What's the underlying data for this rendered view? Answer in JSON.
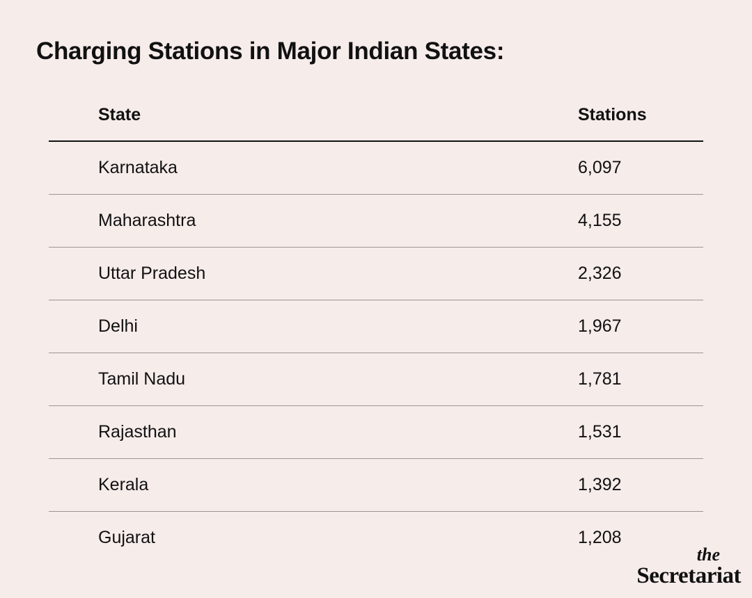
{
  "chart_data": {
    "type": "table",
    "title": "Charging Stations in Major Indian States:",
    "columns": [
      "State",
      "Stations"
    ],
    "rows": [
      {
        "state": "Karnataka",
        "stations": "6,097"
      },
      {
        "state": "Maharashtra",
        "stations": "4,155"
      },
      {
        "state": "Uttar Pradesh",
        "stations": "2,326"
      },
      {
        "state": "Delhi",
        "stations": "1,967"
      },
      {
        "state": "Tamil Nadu",
        "stations": "1,781"
      },
      {
        "state": "Rajasthan",
        "stations": "1,531"
      },
      {
        "state": "Kerala",
        "stations": "1,392"
      },
      {
        "state": "Gujarat",
        "stations": "1,208"
      }
    ]
  },
  "logo": {
    "top": "the",
    "name": "Secretariat"
  },
  "colors": {
    "background": "#f6ecea",
    "text": "#111111",
    "rule": "#9a9595"
  }
}
